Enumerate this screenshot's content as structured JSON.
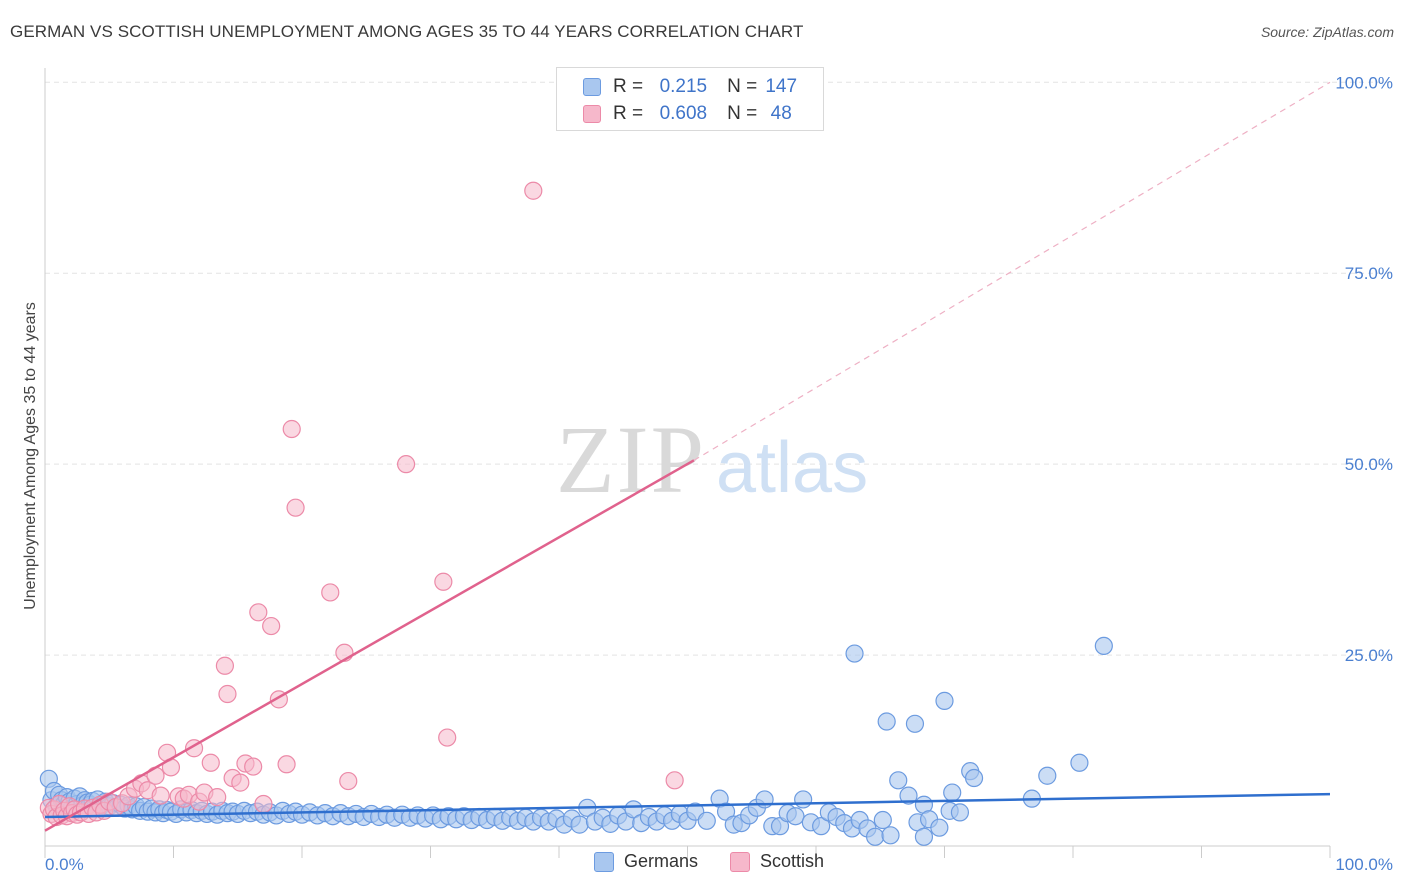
{
  "title": "GERMAN VS SCOTTISH UNEMPLOYMENT AMONG AGES 35 TO 44 YEARS CORRELATION CHART",
  "source": "Source: ZipAtlas.com",
  "watermark": {
    "zip": "ZIP",
    "atlas": "atlas"
  },
  "colors": {
    "blue_fill": "#a9c7ef",
    "blue_stroke": "#6c9be0",
    "blue_line": "#2f6fce",
    "pink_fill": "#f6b8cb",
    "pink_stroke": "#ec8aa8",
    "pink_line": "#e0628d",
    "grid": "#e3e3e3",
    "tick_text": "#4a7fd0"
  },
  "legend": {
    "rows": [
      {
        "r_label": "R =",
        "r_value": "0.215",
        "n_label": "N =",
        "n_value": "147"
      },
      {
        "r_label": "R =",
        "r_value": "0.608",
        "n_label": "N =",
        "n_value": "48"
      }
    ]
  },
  "bottom_legend": {
    "germans": "Germans",
    "scottish": "Scottish"
  },
  "chart_data": {
    "type": "scatter",
    "title": "GERMAN VS SCOTTISH UNEMPLOYMENT AMONG AGES 35 TO 44 YEARS CORRELATION CHART",
    "xlabel": "",
    "ylabel": "Unemployment Among Ages 35 to 44 years",
    "xlim": [
      0,
      100
    ],
    "ylim": [
      0,
      100
    ],
    "x_tick_labels": [
      "0.0%",
      "100.0%"
    ],
    "y_tick_labels": [
      "100.0%",
      "75.0%",
      "50.0%",
      "25.0%"
    ],
    "y_ticks": [
      100,
      75,
      50,
      25
    ],
    "series": [
      {
        "name": "Germans",
        "color": "blue",
        "r": 0.215,
        "n": 147,
        "trend": {
          "x0": 0,
          "y0": 3.8,
          "x1": 100,
          "y1": 6.8,
          "dashed_extension": false
        },
        "points": [
          [
            0.3,
            8.8
          ],
          [
            0.5,
            6.0
          ],
          [
            0.7,
            7.2
          ],
          [
            0.9,
            5.2
          ],
          [
            1.1,
            6.7
          ],
          [
            1.3,
            6.0
          ],
          [
            1.5,
            5.5
          ],
          [
            1.7,
            6.4
          ],
          [
            1.9,
            5.8
          ],
          [
            2.1,
            5.0
          ],
          [
            2.3,
            6.2
          ],
          [
            2.5,
            5.5
          ],
          [
            2.7,
            6.5
          ],
          [
            2.9,
            5.3
          ],
          [
            3.1,
            6.0
          ],
          [
            3.3,
            5.7
          ],
          [
            3.5,
            5.4
          ],
          [
            3.7,
            5.9
          ],
          [
            3.9,
            5.1
          ],
          [
            4.1,
            6.1
          ],
          [
            4.4,
            5.3
          ],
          [
            4.7,
            5.8
          ],
          [
            5.0,
            5.2
          ],
          [
            5.3,
            5.6
          ],
          [
            5.6,
            5.0
          ],
          [
            5.9,
            5.4
          ],
          [
            6.2,
            4.9
          ],
          [
            6.5,
            5.3
          ],
          [
            6.8,
            4.8
          ],
          [
            7.1,
            5.2
          ],
          [
            7.4,
            4.6
          ],
          [
            7.7,
            5.1
          ],
          [
            8.0,
            4.5
          ],
          [
            8.3,
            4.9
          ],
          [
            8.6,
            4.4
          ],
          [
            8.9,
            4.8
          ],
          [
            9.2,
            4.3
          ],
          [
            9.5,
            4.7
          ],
          [
            9.8,
            4.5
          ],
          [
            10.2,
            4.2
          ],
          [
            10.6,
            4.8
          ],
          [
            11.0,
            4.4
          ],
          [
            11.4,
            4.7
          ],
          [
            11.8,
            4.3
          ],
          [
            12.2,
            4.6
          ],
          [
            12.6,
            4.2
          ],
          [
            13.0,
            4.5
          ],
          [
            13.4,
            4.1
          ],
          [
            13.8,
            4.6
          ],
          [
            14.2,
            4.3
          ],
          [
            14.6,
            4.5
          ],
          [
            15.0,
            4.2
          ],
          [
            15.5,
            4.6
          ],
          [
            16.0,
            4.3
          ],
          [
            16.5,
            4.5
          ],
          [
            17.0,
            4.1
          ],
          [
            17.5,
            4.4
          ],
          [
            18.0,
            4.0
          ],
          [
            18.5,
            4.6
          ],
          [
            19.0,
            4.2
          ],
          [
            19.5,
            4.5
          ],
          [
            20.0,
            4.1
          ],
          [
            20.6,
            4.4
          ],
          [
            21.2,
            4.0
          ],
          [
            21.8,
            4.3
          ],
          [
            22.4,
            3.9
          ],
          [
            23.0,
            4.3
          ],
          [
            23.6,
            3.9
          ],
          [
            24.2,
            4.2
          ],
          [
            24.8,
            3.8
          ],
          [
            25.4,
            4.2
          ],
          [
            26.0,
            3.8
          ],
          [
            26.6,
            4.1
          ],
          [
            27.2,
            3.7
          ],
          [
            27.8,
            4.1
          ],
          [
            28.4,
            3.7
          ],
          [
            29.0,
            4.0
          ],
          [
            29.6,
            3.6
          ],
          [
            30.2,
            4.0
          ],
          [
            30.8,
            3.5
          ],
          [
            31.4,
            3.9
          ],
          [
            32.0,
            3.5
          ],
          [
            32.6,
            3.9
          ],
          [
            33.2,
            3.4
          ],
          [
            33.8,
            3.8
          ],
          [
            34.4,
            3.4
          ],
          [
            35.0,
            3.8
          ],
          [
            35.6,
            3.3
          ],
          [
            36.2,
            3.7
          ],
          [
            36.8,
            3.3
          ],
          [
            37.4,
            3.7
          ],
          [
            38.0,
            3.2
          ],
          [
            38.6,
            3.7
          ],
          [
            39.2,
            3.2
          ],
          [
            39.8,
            3.6
          ],
          [
            40.4,
            2.8
          ],
          [
            41.0,
            3.6
          ],
          [
            41.6,
            2.8
          ],
          [
            42.2,
            5.0
          ],
          [
            42.8,
            3.2
          ],
          [
            43.4,
            3.7
          ],
          [
            44.0,
            2.9
          ],
          [
            44.6,
            4.0
          ],
          [
            45.2,
            3.2
          ],
          [
            45.8,
            4.8
          ],
          [
            46.4,
            3.0
          ],
          [
            47.0,
            3.8
          ],
          [
            47.6,
            3.2
          ],
          [
            48.2,
            4.0
          ],
          [
            48.8,
            3.3
          ],
          [
            49.4,
            4.2
          ],
          [
            50.0,
            3.3
          ],
          [
            50.6,
            4.5
          ],
          [
            51.5,
            3.3
          ],
          [
            52.5,
            6.2
          ],
          [
            53.0,
            4.5
          ],
          [
            53.6,
            2.8
          ],
          [
            54.2,
            3.0
          ],
          [
            54.8,
            4.0
          ],
          [
            55.4,
            5.0
          ],
          [
            56.0,
            6.1
          ],
          [
            56.6,
            2.6
          ],
          [
            57.2,
            2.6
          ],
          [
            57.8,
            4.3
          ],
          [
            58.4,
            3.9
          ],
          [
            59.0,
            6.1
          ],
          [
            59.6,
            3.1
          ],
          [
            60.4,
            2.6
          ],
          [
            61.0,
            4.4
          ],
          [
            61.6,
            3.8
          ],
          [
            62.2,
            3.0
          ],
          [
            62.8,
            2.3
          ],
          [
            63.4,
            3.4
          ],
          [
            64.0,
            2.3
          ],
          [
            64.6,
            1.2
          ],
          [
            65.2,
            3.4
          ],
          [
            65.8,
            1.4
          ],
          [
            66.4,
            8.6
          ],
          [
            67.2,
            6.6
          ],
          [
            67.9,
            3.1
          ],
          [
            68.4,
            1.2
          ],
          [
            68.4,
            5.4
          ],
          [
            68.8,
            3.5
          ],
          [
            69.6,
            2.4
          ],
          [
            70.4,
            4.6
          ],
          [
            70.6,
            7.0
          ],
          [
            71.2,
            4.4
          ],
          [
            72.0,
            9.8
          ],
          [
            72.3,
            8.9
          ],
          [
            76.8,
            6.2
          ],
          [
            78.0,
            9.2
          ],
          [
            80.5,
            10.9
          ],
          [
            65.5,
            16.3
          ],
          [
            67.7,
            16.0
          ],
          [
            70.0,
            19.0
          ],
          [
            63.0,
            25.2
          ],
          [
            82.4,
            26.2
          ]
        ]
      },
      {
        "name": "Scottish",
        "color": "pink",
        "r": 0.608,
        "n": 48,
        "trend": {
          "x0": 0,
          "y0": 2.0,
          "x1": 50.5,
          "y1": 50.5,
          "dashed_to": {
            "x": 100,
            "y": 100
          }
        },
        "points": [
          [
            0.3,
            5.0
          ],
          [
            0.5,
            4.2
          ],
          [
            0.7,
            4.8
          ],
          [
            0.9,
            3.8
          ],
          [
            1.1,
            5.5
          ],
          [
            1.3,
            4.0
          ],
          [
            1.5,
            4.6
          ],
          [
            1.7,
            3.9
          ],
          [
            1.9,
            5.2
          ],
          [
            2.1,
            4.3
          ],
          [
            2.3,
            4.8
          ],
          [
            2.5,
            4.1
          ],
          [
            2.8,
            4.4
          ],
          [
            3.1,
            4.9
          ],
          [
            3.4,
            4.2
          ],
          [
            3.7,
            5.0
          ],
          [
            4.0,
            4.4
          ],
          [
            4.3,
            5.4
          ],
          [
            4.6,
            4.6
          ],
          [
            5.0,
            5.8
          ],
          [
            5.5,
            5.1
          ],
          [
            6.0,
            5.6
          ],
          [
            6.5,
            6.5
          ],
          [
            7.0,
            7.5
          ],
          [
            7.5,
            8.2
          ],
          [
            8.0,
            7.3
          ],
          [
            8.6,
            9.2
          ],
          [
            9.0,
            6.6
          ],
          [
            9.5,
            12.2
          ],
          [
            9.8,
            10.3
          ],
          [
            10.4,
            6.5
          ],
          [
            10.8,
            6.2
          ],
          [
            11.2,
            6.7
          ],
          [
            11.6,
            12.8
          ],
          [
            12.0,
            5.8
          ],
          [
            12.4,
            7.0
          ],
          [
            12.9,
            10.9
          ],
          [
            13.4,
            6.4
          ],
          [
            14.0,
            23.6
          ],
          [
            14.2,
            19.9
          ],
          [
            14.6,
            8.9
          ],
          [
            15.2,
            8.3
          ],
          [
            15.6,
            10.8
          ],
          [
            16.2,
            10.4
          ],
          [
            16.6,
            30.6
          ],
          [
            17.0,
            5.5
          ],
          [
            17.6,
            28.8
          ],
          [
            18.2,
            19.2
          ],
          [
            18.8,
            10.7
          ],
          [
            19.2,
            54.6
          ],
          [
            19.5,
            44.3
          ],
          [
            22.2,
            33.2
          ],
          [
            23.3,
            25.3
          ],
          [
            23.6,
            8.5
          ],
          [
            28.1,
            50.0
          ],
          [
            31.0,
            34.6
          ],
          [
            31.3,
            14.2
          ],
          [
            38.0,
            85.8
          ],
          [
            49.0,
            8.6
          ]
        ]
      }
    ]
  }
}
